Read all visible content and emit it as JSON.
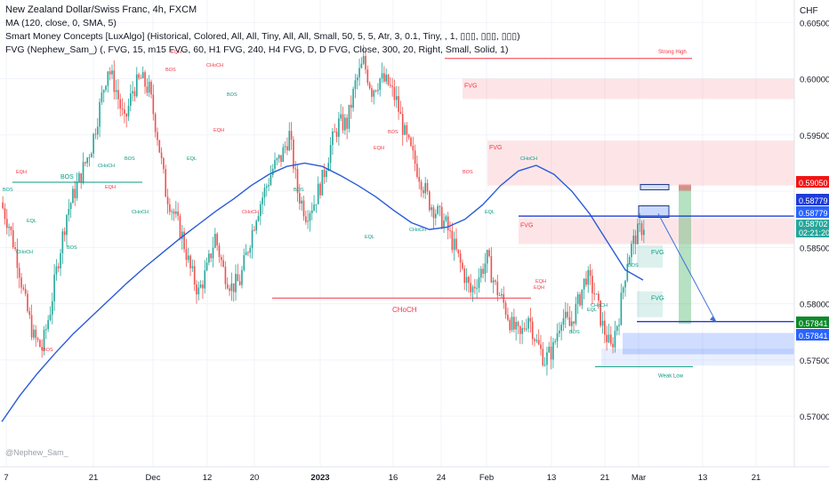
{
  "legend": {
    "title": "New Zealand Dollar/Swiss Franc, 4h, FXCM",
    "lines": [
      "MA (120, close, 0, SMA, 5)",
      "Smart Money Concepts [LuxAlgo] (Historical, Colored, All, All, Tiny, All, All, Small, 50, 5, 5, Atr, 3, 0.1, Tiny, , 1, ▯▯▯, ▯▯▯, ▯▯▯)",
      "FVG (Nephew_Sam_) (, FVG, 15, m15 FVG, 60, H1 FVG, 240, H4 FVG, D, D FVG, Close, 300, 20, Right, Small, Solid, 1)"
    ]
  },
  "watermark": "@Nephew_Sam_",
  "chart_data": {
    "type": "candlestick",
    "currency_label": "CHF",
    "ylim": [
      0.5655,
      0.607
    ],
    "y_ticks": [
      "0.60500",
      "0.60000",
      "0.59500",
      "0.58500",
      "0.58000",
      "0.57500",
      "0.57000"
    ],
    "x_ticks": [
      "7",
      "21",
      "Dec",
      "12",
      "20",
      "2023",
      "16",
      "24",
      "Feb",
      "13",
      "21",
      "Mar",
      "13",
      "21"
    ],
    "price_tags": [
      {
        "text": "0.59050",
        "bg": "#f01515",
        "fg": "#ffffff"
      },
      {
        "text": "0.58779",
        "bg": "#1e3cd8",
        "fg": "#ffffff"
      },
      {
        "text": "0.58779",
        "bg": "#2962ff",
        "fg": "#ffffff"
      },
      {
        "text": "0.58702",
        "bg": "#26a69a",
        "fg": "#ffffff"
      },
      {
        "text": "02:21:20",
        "bg": "#26a69a",
        "fg": "#ffffff"
      },
      {
        "text": "0.57841",
        "bg": "#0b8a2a",
        "fg": "#ffffff"
      },
      {
        "text": "0.57841",
        "bg": "#2962ff",
        "fg": "#ffffff"
      }
    ],
    "levels": [
      {
        "label": "Strong High",
        "value": 0.6018,
        "color": "#f23645"
      },
      {
        "label": "CHoCH",
        "value": 0.5805,
        "color": "#f23645"
      },
      {
        "label": "Weak Low",
        "value": 0.5744,
        "color": "#089981"
      },
      {
        "label": "BOS",
        "value": 0.5908,
        "color": "#089981"
      }
    ],
    "zones": [
      {
        "label": "FVG",
        "y_top": 0.6,
        "y_bottom": 0.5982,
        "color": "#f23645"
      },
      {
        "label": "FVG",
        "y_top": 0.5945,
        "y_bottom": 0.5905,
        "color": "#f23645"
      },
      {
        "label": "FVG",
        "y_top": 0.5876,
        "y_bottom": 0.5853,
        "color": "#f23645"
      },
      {
        "label": "FVG",
        "y_top": 0.5852,
        "y_bottom": 0.5832,
        "color": "#089981"
      },
      {
        "label": "FVG",
        "y_top": 0.5811,
        "y_bottom": 0.5788,
        "color": "#089981"
      }
    ],
    "structure_labels": [
      "BOS",
      "EQH",
      "EQL",
      "CHoCH",
      "BOS",
      "BOS",
      "CHoCH",
      "EQH",
      "BOS",
      "CHoCH",
      "BOS",
      "EQH",
      "EQL",
      "CHoCH",
      "BOS",
      "EQH",
      "CHoCH",
      "BOS",
      "EQH",
      "BOS",
      "CHoCH",
      "EQL",
      "BOS",
      "EQL",
      "CHoCH",
      "EQH",
      "CHoCH",
      "BOS",
      "EQH",
      "EQL",
      "BOS"
    ],
    "ma_series": [
      0.5695,
      0.5718,
      0.5738,
      0.5756,
      0.5773,
      0.5788,
      0.5803,
      0.5818,
      0.5832,
      0.5845,
      0.5858,
      0.587,
      0.5882,
      0.5893,
      0.5905,
      0.5915,
      0.5922,
      0.5925,
      0.5922,
      0.5914,
      0.5905,
      0.5895,
      0.5883,
      0.5872,
      0.5866,
      0.5868,
      0.5875,
      0.5888,
      0.5905,
      0.5918,
      0.5923,
      0.5915,
      0.59,
      0.588,
      0.5855,
      0.583,
      0.5821
    ],
    "price_path": [
      0.589,
      0.587,
      0.584,
      0.58,
      0.577,
      0.576,
      0.5795,
      0.584,
      0.588,
      0.59,
      0.592,
      0.594,
      0.5975,
      0.601,
      0.599,
      0.596,
      0.599,
      0.6,
      0.599,
      0.595,
      0.59,
      0.588,
      0.586,
      0.583,
      0.581,
      0.583,
      0.586,
      0.583,
      0.5815,
      0.582,
      0.585,
      0.588,
      0.59,
      0.592,
      0.593,
      0.595,
      0.59,
      0.588,
      0.589,
      0.591,
      0.594,
      0.596,
      0.596,
      0.5995,
      0.6015,
      0.599,
      0.6,
      0.5995,
      0.598,
      0.595,
      0.593,
      0.591,
      0.589,
      0.588,
      0.587,
      0.585,
      0.583,
      0.581,
      0.5825,
      0.584,
      0.5815,
      0.58,
      0.578,
      0.577,
      0.579,
      0.5765,
      0.575,
      0.576,
      0.579,
      0.578,
      0.58,
      0.5825,
      0.581,
      0.578,
      0.576,
      0.579,
      0.584,
      0.586,
      0.587
    ]
  }
}
